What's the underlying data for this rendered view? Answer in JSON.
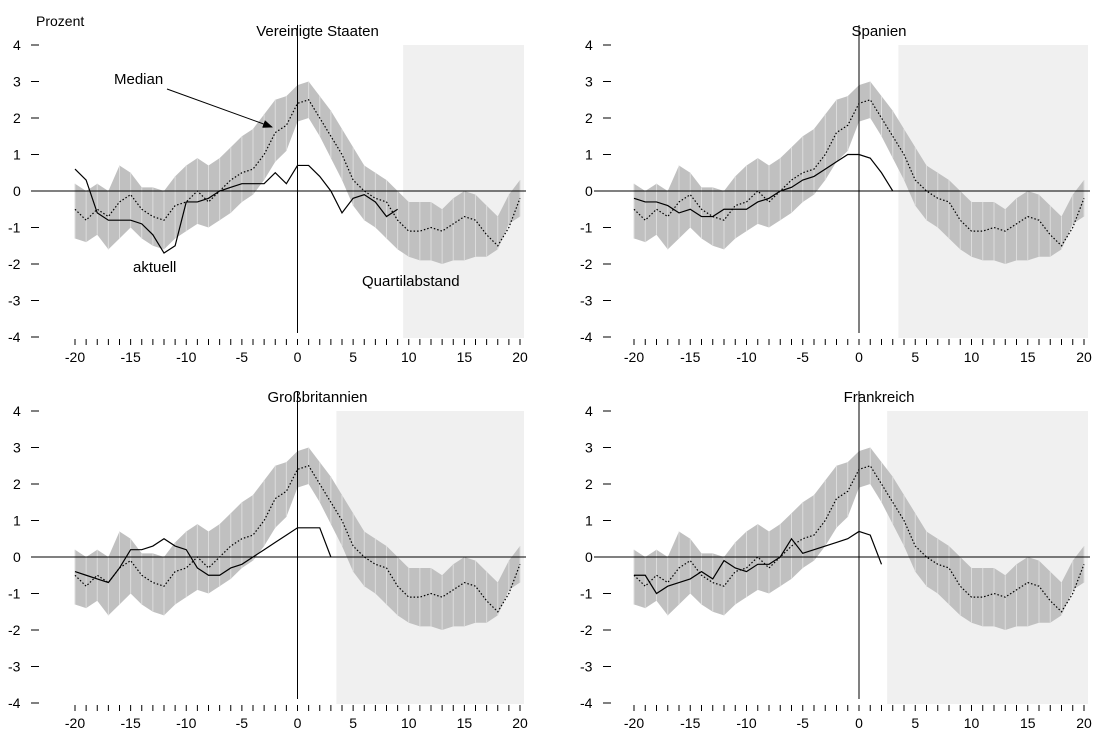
{
  "y_unit_label": "Prozent",
  "annotations": {
    "median": "Median",
    "aktuell": "aktuell",
    "quartilabstand": "Quartilabstand"
  },
  "colors": {
    "iqr_band": "#c0c0c0",
    "shaded_region": "#f0f0f0",
    "lines": "#000000"
  },
  "chart_data": [
    {
      "type": "line",
      "title": "Vereinigte Staaten",
      "xlim": [
        -20,
        20
      ],
      "ylim": [
        -4,
        4
      ],
      "x_ticks": [
        -20,
        -15,
        -10,
        -5,
        0,
        5,
        10,
        15,
        20
      ],
      "y_ticks": [
        4,
        3,
        2,
        1,
        0,
        -1,
        -2,
        -3,
        -4
      ],
      "shaded_from_x": 9.5,
      "median_x": [
        -20,
        -19,
        -18,
        -17,
        -16,
        -15,
        -14,
        -13,
        -12,
        -11,
        -10,
        -9,
        -8,
        -7,
        -6,
        -5,
        -4,
        -3,
        -2,
        -1,
        0,
        1,
        2,
        3,
        4,
        5,
        6,
        7,
        8,
        9,
        10,
        11,
        12,
        13,
        14,
        15,
        16,
        17,
        18,
        19,
        20
      ],
      "median": [
        -0.5,
        -0.8,
        -0.5,
        -0.7,
        -0.3,
        -0.1,
        -0.5,
        -0.7,
        -0.8,
        -0.4,
        -0.3,
        0.0,
        -0.3,
        0.0,
        0.3,
        0.5,
        0.6,
        1.0,
        1.6,
        1.8,
        2.4,
        2.5,
        2.0,
        1.5,
        1.0,
        0.3,
        0.0,
        -0.2,
        -0.3,
        -0.8,
        -1.1,
        -1.1,
        -1.0,
        -1.1,
        -0.9,
        -0.7,
        -0.8,
        -1.2,
        -1.5,
        -1.0,
        -0.2
      ],
      "q_lower": [
        -1.3,
        -1.4,
        -1.2,
        -1.6,
        -1.3,
        -1.0,
        -1.3,
        -1.5,
        -1.6,
        -1.3,
        -1.1,
        -0.9,
        -1.0,
        -0.8,
        -0.6,
        -0.3,
        -0.1,
        0.3,
        0.8,
        1.1,
        1.9,
        2.0,
        1.5,
        0.9,
        0.3,
        -0.4,
        -0.8,
        -1.0,
        -1.3,
        -1.6,
        -1.8,
        -1.9,
        -1.9,
        -2.0,
        -1.9,
        -1.9,
        -1.8,
        -1.8,
        -1.6,
        -0.9,
        -0.7
      ],
      "q_upper": [
        0.2,
        0.0,
        0.2,
        0.0,
        0.7,
        0.5,
        0.1,
        0.1,
        0.0,
        0.4,
        0.7,
        0.9,
        0.7,
        0.9,
        1.2,
        1.5,
        1.7,
        2.1,
        2.5,
        2.6,
        2.9,
        3.0,
        2.6,
        2.2,
        1.7,
        1.2,
        0.7,
        0.5,
        0.3,
        0.0,
        -0.3,
        -0.3,
        -0.3,
        -0.5,
        -0.2,
        0.0,
        -0.1,
        -0.4,
        -0.7,
        -0.1,
        0.3
      ],
      "current_x": [
        -20,
        -19,
        -18,
        -17,
        -16,
        -15,
        -14,
        -13,
        -12,
        -11,
        -10,
        -9,
        -8,
        -7,
        -6,
        -5,
        -4,
        -3,
        -2,
        -1,
        0,
        1,
        2,
        3,
        4,
        5,
        6,
        7,
        8,
        9
      ],
      "current": [
        0.6,
        0.3,
        -0.6,
        -0.8,
        -0.8,
        -0.8,
        -0.9,
        -1.2,
        -1.7,
        -1.5,
        -0.3,
        -0.3,
        -0.2,
        0.0,
        0.1,
        0.2,
        0.2,
        0.2,
        0.5,
        0.2,
        0.7,
        0.7,
        0.4,
        0.0,
        -0.6,
        -0.2,
        -0.1,
        -0.3,
        -0.7,
        -0.5
      ]
    },
    {
      "type": "line",
      "title": "Spanien",
      "xlim": [
        -20,
        20
      ],
      "ylim": [
        -4,
        4
      ],
      "x_ticks": [
        -20,
        -15,
        -10,
        -5,
        0,
        5,
        10,
        15,
        20
      ],
      "y_ticks": [
        4,
        3,
        2,
        1,
        0,
        -1,
        -2,
        -3,
        -4
      ],
      "shaded_from_x": 3.5,
      "median_x": [
        -20,
        -19,
        -18,
        -17,
        -16,
        -15,
        -14,
        -13,
        -12,
        -11,
        -10,
        -9,
        -8,
        -7,
        -6,
        -5,
        -4,
        -3,
        -2,
        -1,
        0,
        1,
        2,
        3,
        4,
        5,
        6,
        7,
        8,
        9,
        10,
        11,
        12,
        13,
        14,
        15,
        16,
        17,
        18,
        19,
        20
      ],
      "median": [
        -0.5,
        -0.8,
        -0.5,
        -0.7,
        -0.3,
        -0.1,
        -0.5,
        -0.7,
        -0.8,
        -0.4,
        -0.3,
        0.0,
        -0.3,
        0.0,
        0.3,
        0.5,
        0.6,
        1.0,
        1.6,
        1.8,
        2.4,
        2.5,
        2.0,
        1.5,
        1.0,
        0.3,
        0.0,
        -0.2,
        -0.3,
        -0.8,
        -1.1,
        -1.1,
        -1.0,
        -1.1,
        -0.9,
        -0.7,
        -0.8,
        -1.2,
        -1.5,
        -1.0,
        -0.2
      ],
      "q_lower": [
        -1.3,
        -1.4,
        -1.2,
        -1.6,
        -1.3,
        -1.0,
        -1.3,
        -1.5,
        -1.6,
        -1.3,
        -1.1,
        -0.9,
        -1.0,
        -0.8,
        -0.6,
        -0.3,
        -0.1,
        0.3,
        0.8,
        1.1,
        1.9,
        2.0,
        1.5,
        0.9,
        0.3,
        -0.4,
        -0.8,
        -1.0,
        -1.3,
        -1.6,
        -1.8,
        -1.9,
        -1.9,
        -2.0,
        -1.9,
        -1.9,
        -1.8,
        -1.8,
        -1.6,
        -0.9,
        -0.7
      ],
      "q_upper": [
        0.2,
        0.0,
        0.2,
        0.0,
        0.7,
        0.5,
        0.1,
        0.1,
        0.0,
        0.4,
        0.7,
        0.9,
        0.7,
        0.9,
        1.2,
        1.5,
        1.7,
        2.1,
        2.5,
        2.6,
        2.9,
        3.0,
        2.6,
        2.2,
        1.7,
        1.2,
        0.7,
        0.5,
        0.3,
        0.0,
        -0.3,
        -0.3,
        -0.3,
        -0.5,
        -0.2,
        0.0,
        -0.1,
        -0.4,
        -0.7,
        -0.1,
        0.3
      ],
      "current_x": [
        -20,
        -19,
        -18,
        -17,
        -16,
        -15,
        -14,
        -13,
        -12,
        -11,
        -10,
        -9,
        -8,
        -7,
        -6,
        -5,
        -4,
        -3,
        -2,
        -1,
        0,
        1,
        2,
        3
      ],
      "current": [
        -0.2,
        -0.3,
        -0.3,
        -0.4,
        -0.6,
        -0.5,
        -0.7,
        -0.7,
        -0.5,
        -0.5,
        -0.5,
        -0.3,
        -0.2,
        0.0,
        0.1,
        0.3,
        0.4,
        0.6,
        0.8,
        1.0,
        1.0,
        0.9,
        0.5,
        0.0
      ]
    },
    {
      "type": "line",
      "title": "Großbritannien",
      "xlim": [
        -20,
        20
      ],
      "ylim": [
        -4,
        4
      ],
      "x_ticks": [
        -20,
        -15,
        -10,
        -5,
        0,
        5,
        10,
        15,
        20
      ],
      "y_ticks": [
        4,
        3,
        2,
        1,
        0,
        -1,
        -2,
        -3,
        -4
      ],
      "shaded_from_x": 3.5,
      "median_x": [
        -20,
        -19,
        -18,
        -17,
        -16,
        -15,
        -14,
        -13,
        -12,
        -11,
        -10,
        -9,
        -8,
        -7,
        -6,
        -5,
        -4,
        -3,
        -2,
        -1,
        0,
        1,
        2,
        3,
        4,
        5,
        6,
        7,
        8,
        9,
        10,
        11,
        12,
        13,
        14,
        15,
        16,
        17,
        18,
        19,
        20
      ],
      "median": [
        -0.5,
        -0.8,
        -0.5,
        -0.7,
        -0.3,
        -0.1,
        -0.5,
        -0.7,
        -0.8,
        -0.4,
        -0.3,
        0.0,
        -0.3,
        0.0,
        0.3,
        0.5,
        0.6,
        1.0,
        1.6,
        1.8,
        2.4,
        2.5,
        2.0,
        1.5,
        1.0,
        0.3,
        0.0,
        -0.2,
        -0.3,
        -0.8,
        -1.1,
        -1.1,
        -1.0,
        -1.1,
        -0.9,
        -0.7,
        -0.8,
        -1.2,
        -1.5,
        -1.0,
        -0.2
      ],
      "q_lower": [
        -1.3,
        -1.4,
        -1.2,
        -1.6,
        -1.3,
        -1.0,
        -1.3,
        -1.5,
        -1.6,
        -1.3,
        -1.1,
        -0.9,
        -1.0,
        -0.8,
        -0.6,
        -0.3,
        -0.1,
        0.3,
        0.8,
        1.1,
        1.9,
        2.0,
        1.5,
        0.9,
        0.3,
        -0.4,
        -0.8,
        -1.0,
        -1.3,
        -1.6,
        -1.8,
        -1.9,
        -1.9,
        -2.0,
        -1.9,
        -1.9,
        -1.8,
        -1.8,
        -1.6,
        -0.9,
        -0.7
      ],
      "q_upper": [
        0.2,
        0.0,
        0.2,
        0.0,
        0.7,
        0.5,
        0.1,
        0.1,
        0.0,
        0.4,
        0.7,
        0.9,
        0.7,
        0.9,
        1.2,
        1.5,
        1.7,
        2.1,
        2.5,
        2.6,
        2.9,
        3.0,
        2.6,
        2.2,
        1.7,
        1.2,
        0.7,
        0.5,
        0.3,
        0.0,
        -0.3,
        -0.3,
        -0.3,
        -0.5,
        -0.2,
        0.0,
        -0.1,
        -0.4,
        -0.7,
        -0.1,
        0.3
      ],
      "current_x": [
        -20,
        -19,
        -18,
        -17,
        -16,
        -15,
        -14,
        -13,
        -12,
        -11,
        -10,
        -9,
        -8,
        -7,
        -6,
        -5,
        -4,
        -3,
        -2,
        -1,
        0,
        1,
        2,
        3
      ],
      "current": [
        -0.4,
        -0.5,
        -0.6,
        -0.7,
        -0.3,
        0.2,
        0.2,
        0.3,
        0.5,
        0.3,
        0.2,
        -0.3,
        -0.5,
        -0.5,
        -0.3,
        -0.2,
        0.0,
        0.2,
        0.4,
        0.6,
        0.8,
        0.8,
        0.8,
        0.0
      ]
    },
    {
      "type": "line",
      "title": "Frankreich",
      "xlim": [
        -20,
        20
      ],
      "ylim": [
        -4,
        4
      ],
      "x_ticks": [
        -20,
        -15,
        -10,
        -5,
        0,
        5,
        10,
        15,
        20
      ],
      "y_ticks": [
        4,
        3,
        2,
        1,
        0,
        -1,
        -2,
        -3,
        -4
      ],
      "shaded_from_x": 2.5,
      "median_x": [
        -20,
        -19,
        -18,
        -17,
        -16,
        -15,
        -14,
        -13,
        -12,
        -11,
        -10,
        -9,
        -8,
        -7,
        -6,
        -5,
        -4,
        -3,
        -2,
        -1,
        0,
        1,
        2,
        3,
        4,
        5,
        6,
        7,
        8,
        9,
        10,
        11,
        12,
        13,
        14,
        15,
        16,
        17,
        18,
        19,
        20
      ],
      "median": [
        -0.5,
        -0.8,
        -0.5,
        -0.7,
        -0.3,
        -0.1,
        -0.5,
        -0.7,
        -0.8,
        -0.4,
        -0.3,
        0.0,
        -0.3,
        0.0,
        0.3,
        0.5,
        0.6,
        1.0,
        1.6,
        1.8,
        2.4,
        2.5,
        2.0,
        1.5,
        1.0,
        0.3,
        0.0,
        -0.2,
        -0.3,
        -0.8,
        -1.1,
        -1.1,
        -1.0,
        -1.1,
        -0.9,
        -0.7,
        -0.8,
        -1.2,
        -1.5,
        -1.0,
        -0.2
      ],
      "q_lower": [
        -1.3,
        -1.4,
        -1.2,
        -1.6,
        -1.3,
        -1.0,
        -1.3,
        -1.5,
        -1.6,
        -1.3,
        -1.1,
        -0.9,
        -1.0,
        -0.8,
        -0.6,
        -0.3,
        -0.1,
        0.3,
        0.8,
        1.1,
        1.9,
        2.0,
        1.5,
        0.9,
        0.3,
        -0.4,
        -0.8,
        -1.0,
        -1.3,
        -1.6,
        -1.8,
        -1.9,
        -1.9,
        -2.0,
        -1.9,
        -1.9,
        -1.8,
        -1.8,
        -1.6,
        -0.9,
        -0.7
      ],
      "q_upper": [
        0.2,
        0.0,
        0.2,
        0.0,
        0.7,
        0.5,
        0.1,
        0.1,
        0.0,
        0.4,
        0.7,
        0.9,
        0.7,
        0.9,
        1.2,
        1.5,
        1.7,
        2.1,
        2.5,
        2.6,
        2.9,
        3.0,
        2.6,
        2.2,
        1.7,
        1.2,
        0.7,
        0.5,
        0.3,
        0.0,
        -0.3,
        -0.3,
        -0.3,
        -0.5,
        -0.2,
        0.0,
        -0.1,
        -0.4,
        -0.7,
        -0.1,
        0.3
      ],
      "current_x": [
        -20,
        -19,
        -18,
        -17,
        -16,
        -15,
        -14,
        -13,
        -12,
        -11,
        -10,
        -9,
        -8,
        -7,
        -6,
        -5,
        -4,
        -3,
        -2,
        -1,
        0,
        1,
        2
      ],
      "current": [
        -0.5,
        -0.5,
        -1.0,
        -0.8,
        -0.7,
        -0.6,
        -0.4,
        -0.6,
        -0.1,
        -0.3,
        -0.4,
        -0.2,
        -0.2,
        0.0,
        0.5,
        0.1,
        0.2,
        0.3,
        0.4,
        0.5,
        0.7,
        0.6,
        -0.2
      ]
    }
  ]
}
